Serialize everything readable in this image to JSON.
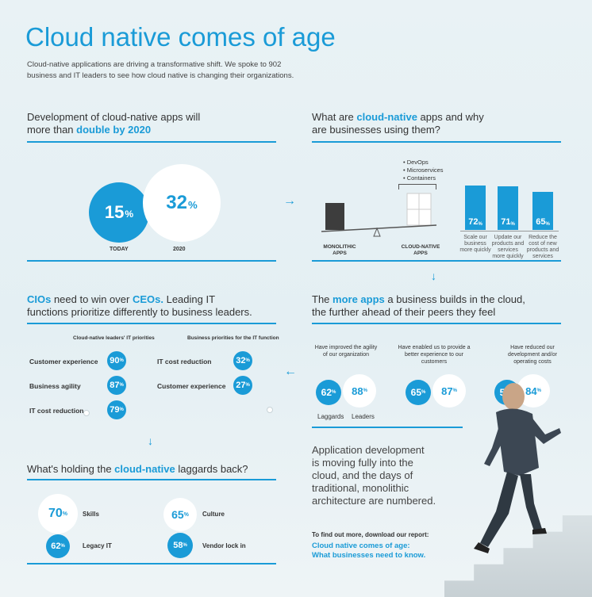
{
  "header": {
    "title": "Cloud native comes of age",
    "intro_line1": "Cloud-native applications are driving a transformative shift. We spoke to 902",
    "intro_line2": "business and IT leaders to see how cloud native is changing their organizations."
  },
  "development": {
    "heading_line1": "Development of cloud-native apps will",
    "heading_prefix": "more than ",
    "heading_highlight": "double by 2020",
    "today_value": "15",
    "today_label": "TODAY",
    "future_value": "32",
    "future_label": "2020",
    "pct": "%"
  },
  "what_are": {
    "heading_prefix": "What are ",
    "heading_highlight": "cloud-native",
    "heading_suffix": " apps and why",
    "heading_line2": "are businesses using them?",
    "bullets": [
      "• DevOps",
      "• Microservices",
      "• Containers"
    ],
    "monolithic_label": "MONOLITHIC\nAPPS",
    "cloudnative_label": "CLOUD-NATIVE\nAPPS",
    "bars": [
      {
        "value": "72",
        "label": "Scale our business more quickly"
      },
      {
        "value": "71",
        "label": "Update our products and services more quickly"
      },
      {
        "value": "65",
        "label": "Reduce the cost of new products and services"
      }
    ]
  },
  "cios": {
    "heading_cio": "CIOs",
    "heading_mid": " need to win over ",
    "heading_ceo": "CEOs.",
    "heading_rest": " Leading IT",
    "heading_line2": "functions prioritize differently to business leaders.",
    "left_header": "Cloud-native leaders' IT priorities",
    "right_header": "Business priorities for the IT function",
    "left_rows": [
      {
        "label": "Customer experience",
        "value": "90"
      },
      {
        "label": "Business agility",
        "value": "87"
      },
      {
        "label": "IT cost reduction",
        "value": "79"
      }
    ],
    "right_rows": [
      {
        "label": "IT cost reduction",
        "value": "32"
      },
      {
        "label": "Customer experience",
        "value": "27"
      }
    ]
  },
  "more_apps": {
    "heading_prefix": "The ",
    "heading_highlight": "more apps",
    "heading_suffix": " a business builds in the cloud,",
    "heading_line2": "the further ahead of their peers they feel",
    "groups": [
      {
        "label": "Have improved the agility of our organization",
        "laggards": "62",
        "leaders": "88"
      },
      {
        "label": "Have enabled us to provide a better experience to our customers",
        "laggards": "65",
        "leaders": "87"
      },
      {
        "label": "Have reduced our development and/or operating costs",
        "laggards": "56",
        "leaders": "84"
      }
    ],
    "laggards_label": "Laggards",
    "leaders_label": "Leaders"
  },
  "holding_back": {
    "heading_prefix": "What's holding the ",
    "heading_highlight": "cloud-native",
    "heading_suffix": " laggards back?",
    "items": [
      {
        "value": "70",
        "label": "Skills"
      },
      {
        "value": "65",
        "label": "Culture"
      },
      {
        "value": "62",
        "label": "Legacy IT"
      },
      {
        "value": "58",
        "label": "Vendor lock in"
      }
    ]
  },
  "closing": {
    "line1": "Application development",
    "line2": "is moving fully into the",
    "line3": "cloud, and the days of",
    "line4": "traditional, monolithic",
    "line5": "architecture are numbered.",
    "cta": "To find out more, download our report:",
    "report_line1": "Cloud native comes of age:",
    "report_line2": "What businesses need to know."
  },
  "colors": {
    "accent": "#1a9bd7",
    "background": "#e6f0f4"
  }
}
